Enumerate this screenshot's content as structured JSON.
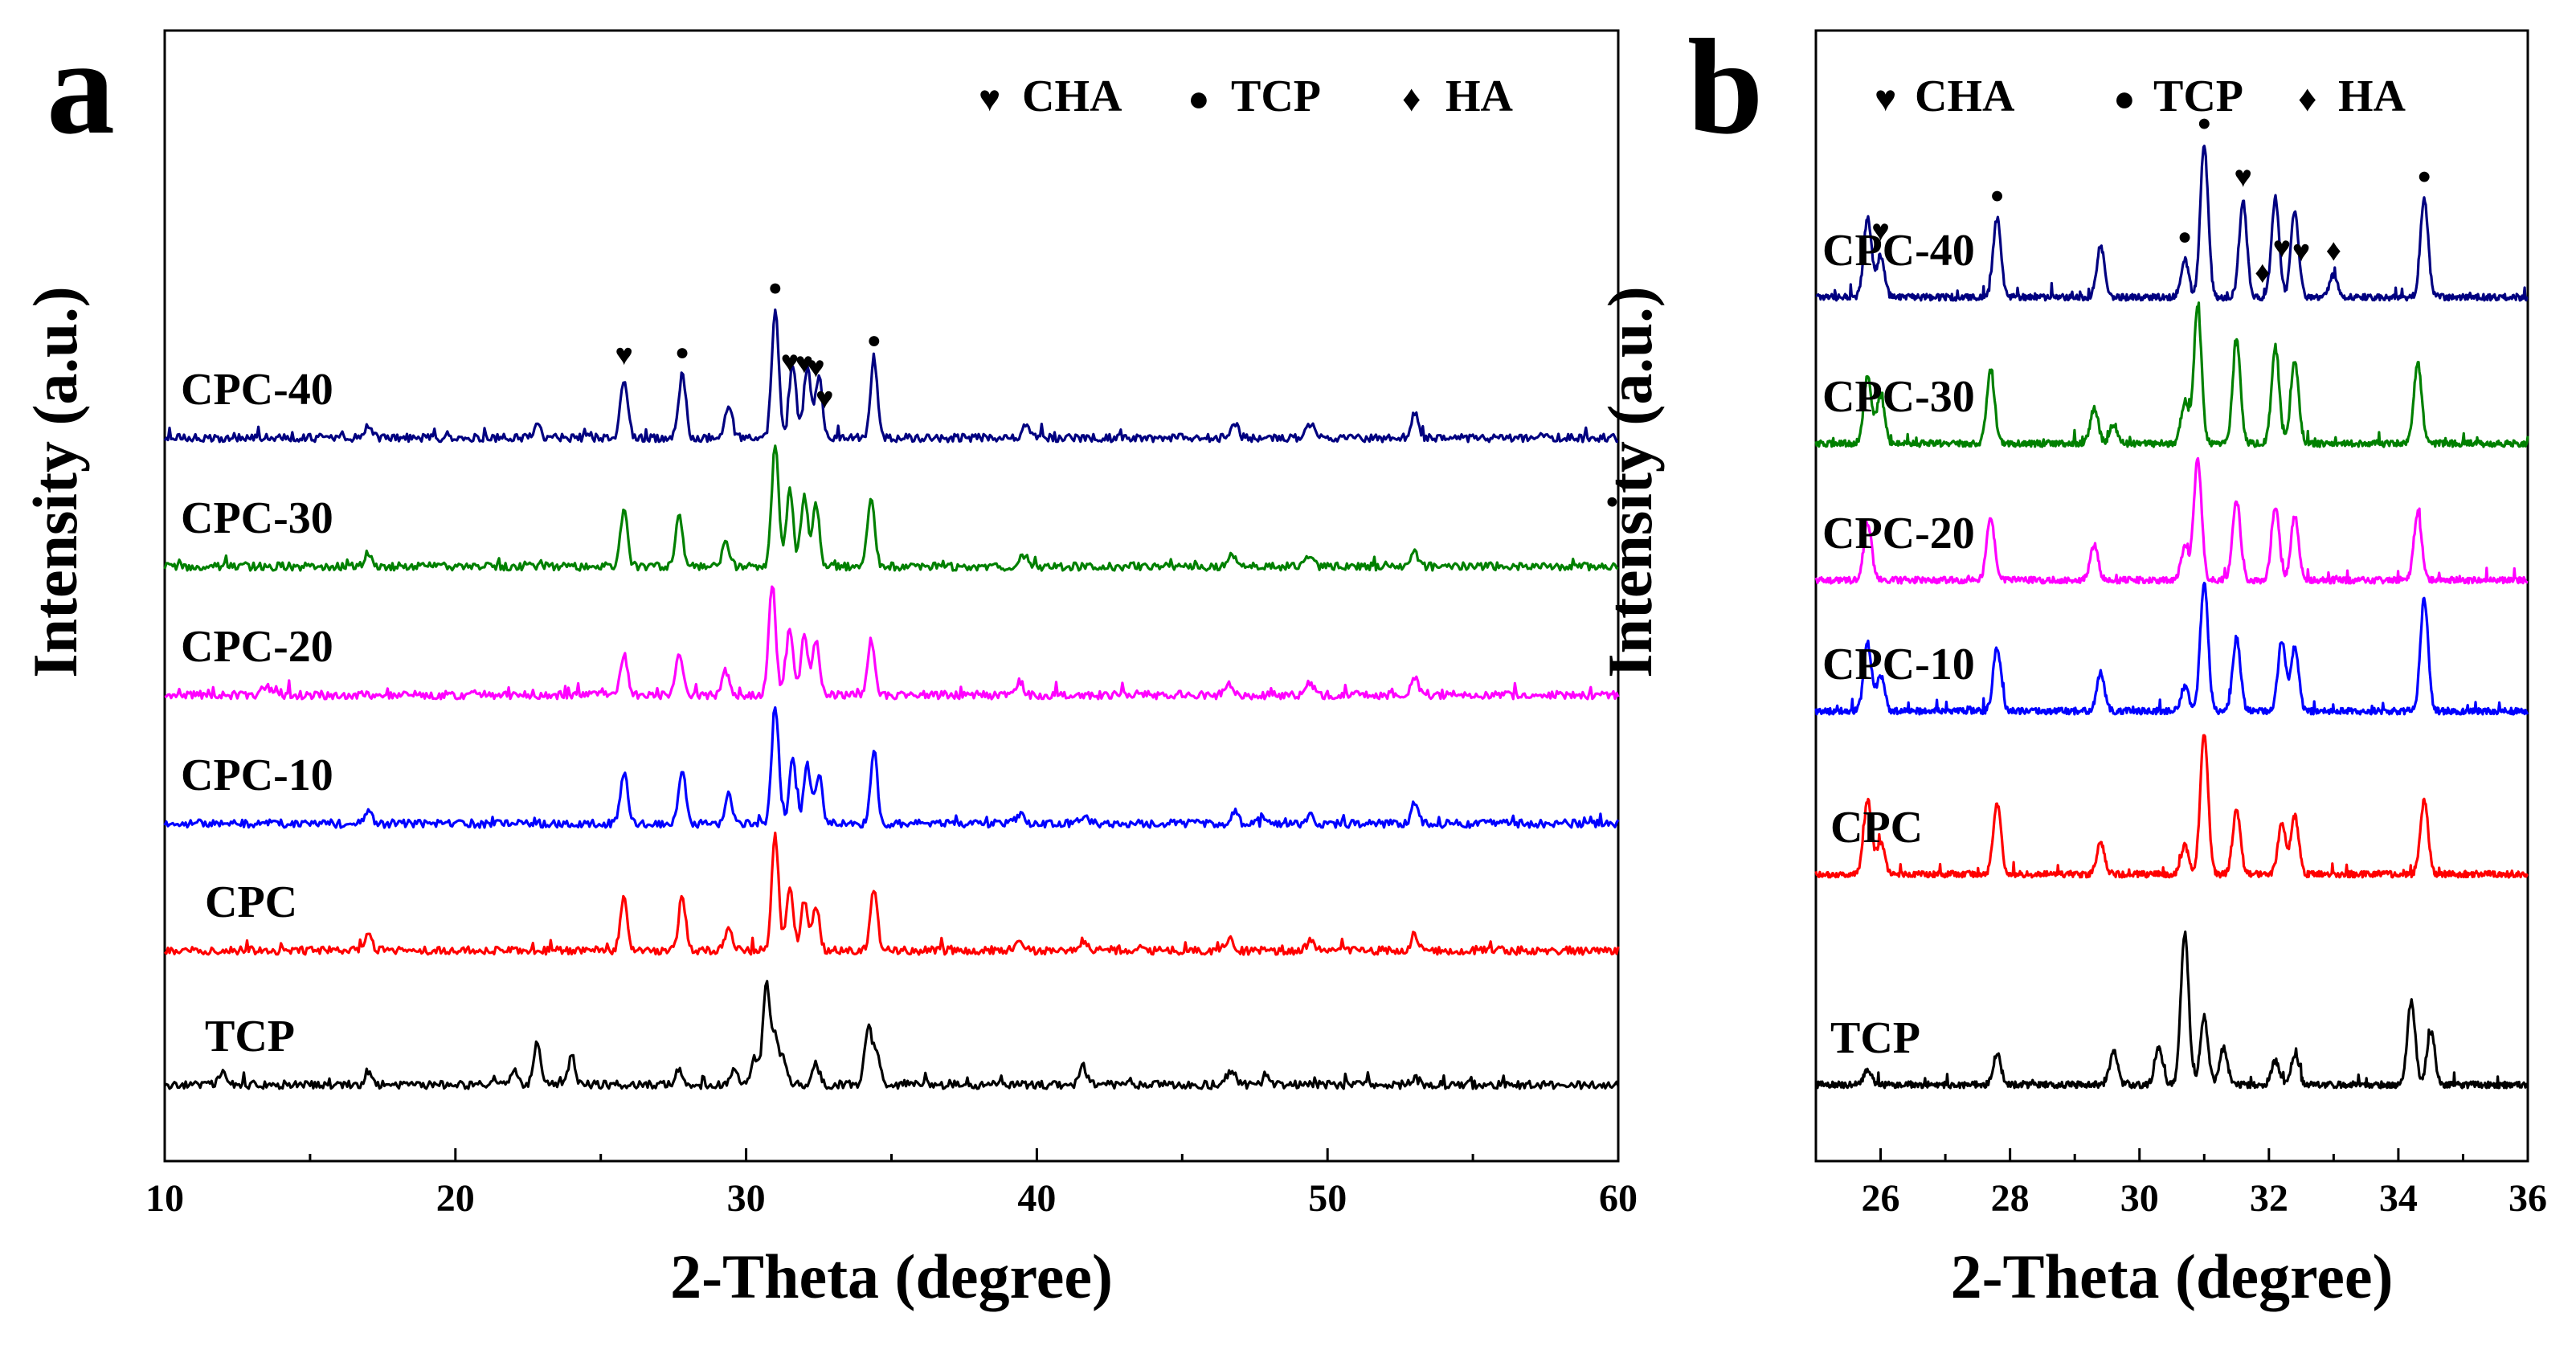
{
  "chart_data": [
    {
      "type": "line",
      "panel_label": "a",
      "title": "",
      "xlabel": "2-Theta (degree)",
      "ylabel": "Intensity (a.u.)",
      "xlim": [
        10,
        60
      ],
      "xticks": [
        10,
        20,
        30,
        40,
        50,
        60
      ],
      "yticks": [],
      "grid": false,
      "legend": [
        {
          "symbol": "♥",
          "label": "CHA"
        },
        {
          "symbol": "●",
          "label": "TCP"
        },
        {
          "symbol": "♦",
          "label": "HA"
        }
      ],
      "series": [
        {
          "name": "TCP",
          "color": "#000000",
          "baseline": 0,
          "scale": 1.0,
          "peaks": [
            [
              12.0,
              0.1
            ],
            [
              17.0,
              0.08
            ],
            [
              22.0,
              0.12
            ],
            [
              22.8,
              0.32
            ],
            [
              24.0,
              0.22
            ],
            [
              27.7,
              0.12
            ],
            [
              29.6,
              0.14
            ],
            [
              30.3,
              0.2
            ],
            [
              30.7,
              0.8
            ],
            [
              31.0,
              0.35
            ],
            [
              31.3,
              0.2
            ],
            [
              32.4,
              0.16
            ],
            [
              34.2,
              0.46
            ],
            [
              34.5,
              0.25
            ],
            [
              41.6,
              0.14
            ],
            [
              46.7,
              0.12
            ],
            [
              47.9,
              0.06
            ],
            [
              53.0,
              0.05
            ]
          ]
        },
        {
          "name": "CPC",
          "color": "#ff0000",
          "baseline": 1,
          "scale": 0.95,
          "peaks": [
            [
              17.0,
              0.12
            ],
            [
              25.8,
              0.42
            ],
            [
              27.8,
              0.45
            ],
            [
              29.4,
              0.2
            ],
            [
              31.0,
              0.94
            ],
            [
              31.5,
              0.5
            ],
            [
              32.0,
              0.42
            ],
            [
              32.4,
              0.38
            ],
            [
              34.4,
              0.5
            ],
            [
              39.4,
              0.06
            ],
            [
              41.6,
              0.08
            ],
            [
              46.6,
              0.1
            ],
            [
              49.4,
              0.08
            ],
            [
              53.0,
              0.14
            ]
          ]
        },
        {
          "name": "CPC-10",
          "color": "#0000ff",
          "baseline": 2,
          "scale": 0.95,
          "peaks": [
            [
              17.0,
              0.1
            ],
            [
              25.8,
              0.42
            ],
            [
              27.8,
              0.45
            ],
            [
              29.4,
              0.25
            ],
            [
              31.0,
              0.98
            ],
            [
              31.6,
              0.52
            ],
            [
              32.1,
              0.48
            ],
            [
              32.5,
              0.4
            ],
            [
              34.4,
              0.58
            ],
            [
              39.4,
              0.08
            ],
            [
              41.6,
              0.06
            ],
            [
              46.8,
              0.1
            ],
            [
              49.4,
              0.08
            ],
            [
              53.0,
              0.18
            ]
          ]
        },
        {
          "name": "CPC-20",
          "color": "#ff00ff",
          "baseline": 3,
          "scale": 0.95,
          "peaks": [
            [
              13.5,
              0.08
            ],
            [
              25.8,
              0.34
            ],
            [
              27.7,
              0.34
            ],
            [
              29.3,
              0.2
            ],
            [
              30.9,
              0.9
            ],
            [
              31.5,
              0.55
            ],
            [
              32.0,
              0.48
            ],
            [
              32.4,
              0.44
            ],
            [
              34.3,
              0.46
            ],
            [
              39.4,
              0.12
            ],
            [
              46.6,
              0.08
            ],
            [
              49.4,
              0.1
            ],
            [
              53.0,
              0.14
            ]
          ]
        },
        {
          "name": "CPC-30",
          "color": "#008000",
          "baseline": 4,
          "scale": 0.95,
          "peaks": [
            [
              17.0,
              0.12
            ],
            [
              25.8,
              0.46
            ],
            [
              27.7,
              0.42
            ],
            [
              29.3,
              0.22
            ],
            [
              31.0,
              1.0
            ],
            [
              31.5,
              0.62
            ],
            [
              32.0,
              0.58
            ],
            [
              32.4,
              0.52
            ],
            [
              34.3,
              0.58
            ],
            [
              39.5,
              0.1
            ],
            [
              46.7,
              0.1
            ],
            [
              49.4,
              0.1
            ],
            [
              53.0,
              0.12
            ]
          ]
        },
        {
          "name": "CPC-40",
          "color": "#000080",
          "baseline": 5,
          "scale": 0.95,
          "peaks": [
            [
              17.0,
              0.1
            ],
            [
              22.8,
              0.1
            ],
            [
              25.8,
              0.48
            ],
            [
              27.8,
              0.52
            ],
            [
              29.4,
              0.28
            ],
            [
              31.0,
              1.05
            ],
            [
              31.6,
              0.6
            ],
            [
              32.1,
              0.58
            ],
            [
              32.5,
              0.5
            ],
            [
              34.4,
              0.62
            ],
            [
              39.6,
              0.1
            ],
            [
              46.8,
              0.12
            ],
            [
              49.4,
              0.12
            ],
            [
              53.0,
              0.22
            ]
          ]
        }
      ],
      "annotations": [
        {
          "symbol": "♥",
          "x": 25.8,
          "series": "CPC-40"
        },
        {
          "symbol": "●",
          "x": 27.8,
          "series": "CPC-40"
        },
        {
          "symbol": "●",
          "x": 31.0,
          "series": "CPC-40"
        },
        {
          "symbol": "♥",
          "x": 31.5,
          "series": "CPC-40"
        },
        {
          "symbol": "♥",
          "x": 32.0,
          "series": "CPC-40"
        },
        {
          "symbol": "♥",
          "x": 32.4,
          "series": "CPC-40"
        },
        {
          "symbol": "♥",
          "x": 32.7,
          "series": "CPC-40"
        },
        {
          "symbol": "●",
          "x": 34.4,
          "series": "CPC-40"
        }
      ]
    },
    {
      "type": "line",
      "panel_label": "b",
      "title": "",
      "xlabel": "2-Theta (degree)",
      "ylabel": "Intensity (a.u.)",
      "xlim": [
        25,
        36
      ],
      "xticks": [
        26,
        28,
        30,
        32,
        34,
        36
      ],
      "yticks": [],
      "grid": false,
      "legend": [
        {
          "symbol": "♥",
          "label": "CHA"
        },
        {
          "symbol": "●",
          "label": "TCP"
        },
        {
          "symbol": "♦",
          "label": "HA"
        }
      ],
      "series": [
        {
          "name": "TCP",
          "color": "#000000",
          "baseline": 0,
          "scale": 1.0,
          "peaks": [
            [
              25.8,
              0.08
            ],
            [
              27.8,
              0.18
            ],
            [
              29.6,
              0.2
            ],
            [
              30.3,
              0.22
            ],
            [
              30.7,
              0.9
            ],
            [
              31.0,
              0.4
            ],
            [
              31.3,
              0.22
            ],
            [
              32.1,
              0.14
            ],
            [
              32.4,
              0.18
            ],
            [
              34.2,
              0.5
            ],
            [
              34.5,
              0.32
            ]
          ]
        },
        {
          "name": "CPC",
          "color": "#ff0000",
          "baseline": 1,
          "scale": 0.95,
          "peaks": [
            [
              25.8,
              0.46
            ],
            [
              26.0,
              0.2
            ],
            [
              27.8,
              0.44
            ],
            [
              29.4,
              0.2
            ],
            [
              30.7,
              0.18
            ],
            [
              31.0,
              0.88
            ],
            [
              31.5,
              0.4
            ],
            [
              32.2,
              0.32
            ],
            [
              32.4,
              0.36
            ],
            [
              34.4,
              0.46
            ]
          ]
        },
        {
          "name": "CPC-10",
          "color": "#0000ff",
          "baseline": 2,
          "scale": 0.95,
          "peaks": [
            [
              25.8,
              0.42
            ],
            [
              26.0,
              0.22
            ],
            [
              27.8,
              0.4
            ],
            [
              29.4,
              0.24
            ],
            [
              30.7,
              0.15
            ],
            [
              31.0,
              0.8
            ],
            [
              31.5,
              0.46
            ],
            [
              32.2,
              0.44
            ],
            [
              32.4,
              0.4
            ],
            [
              34.4,
              0.7
            ]
          ]
        },
        {
          "name": "CPC-20",
          "color": "#ff00ff",
          "baseline": 3,
          "scale": 0.95,
          "peaks": [
            [
              25.8,
              0.36
            ],
            [
              27.7,
              0.4
            ],
            [
              29.3,
              0.22
            ],
            [
              30.7,
              0.2
            ],
            [
              30.9,
              0.75
            ],
            [
              31.5,
              0.5
            ],
            [
              32.1,
              0.46
            ],
            [
              32.4,
              0.4
            ],
            [
              34.3,
              0.42
            ]
          ]
        },
        {
          "name": "CPC-30",
          "color": "#008000",
          "baseline": 4,
          "scale": 0.95,
          "peaks": [
            [
              25.8,
              0.42
            ],
            [
              26.0,
              0.3
            ],
            [
              27.7,
              0.46
            ],
            [
              29.3,
              0.22
            ],
            [
              29.6,
              0.12
            ],
            [
              30.7,
              0.26
            ],
            [
              30.9,
              0.85
            ],
            [
              31.5,
              0.64
            ],
            [
              32.1,
              0.58
            ],
            [
              32.4,
              0.52
            ],
            [
              34.3,
              0.5
            ]
          ]
        },
        {
          "name": "CPC-40",
          "color": "#000080",
          "baseline": 5,
          "scale": 0.95,
          "peaks": [
            [
              25.8,
              0.5
            ],
            [
              26.0,
              0.26
            ],
            [
              27.8,
              0.5
            ],
            [
              29.4,
              0.32
            ],
            [
              30.7,
              0.24
            ],
            [
              31.0,
              0.95
            ],
            [
              31.6,
              0.6
            ],
            [
              32.1,
              0.62
            ],
            [
              32.4,
              0.54
            ],
            [
              33.0,
              0.14
            ],
            [
              34.4,
              0.62
            ]
          ]
        }
      ],
      "annotations": [
        {
          "symbol": "♥",
          "x": 26.0,
          "series": "CPC-40"
        },
        {
          "symbol": "●",
          "x": 27.8,
          "series": "CPC-40"
        },
        {
          "symbol": "●",
          "x": 30.7,
          "series": "CPC-40"
        },
        {
          "symbol": "●",
          "x": 31.0,
          "series": "CPC-40"
        },
        {
          "symbol": "♥",
          "x": 31.6,
          "series": "CPC-40"
        },
        {
          "symbol": "♦",
          "x": 31.9,
          "series": "CPC-40"
        },
        {
          "symbol": "♥",
          "x": 32.2,
          "series": "CPC-40"
        },
        {
          "symbol": "♥",
          "x": 32.5,
          "series": "CPC-40"
        },
        {
          "symbol": "♦",
          "x": 33.0,
          "series": "CPC-40"
        },
        {
          "symbol": "●",
          "x": 34.4,
          "series": "CPC-40"
        }
      ]
    }
  ]
}
